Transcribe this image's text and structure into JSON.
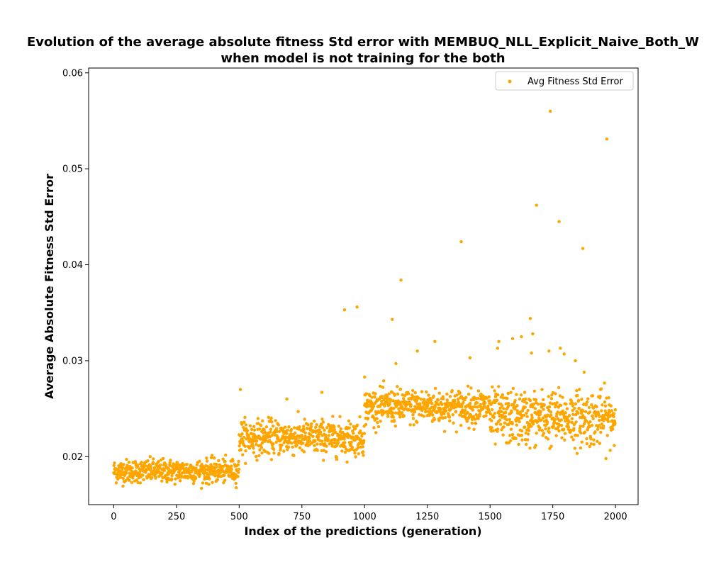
{
  "chart_data": {
    "type": "scatter",
    "title_line1": "Evolution of the average absolute fitness Std error with MEMBUQ_NLL_Explicit_Naive_Both_W",
    "title_line2": "when model is not training for the both",
    "xlabel": "Index of the predictions (generation)",
    "ylabel": "Average Absolute Fitness Std Error",
    "xlim": [
      -100,
      2090
    ],
    "ylim": [
      0.015,
      0.0605
    ],
    "x_ticks": [
      0,
      250,
      500,
      750,
      1000,
      1250,
      1500,
      1750,
      2000
    ],
    "y_ticks": [
      0.02,
      0.03,
      0.04,
      0.05,
      0.06
    ],
    "x_tick_labels": [
      "0",
      "250",
      "500",
      "750",
      "1000",
      "1250",
      "1500",
      "1750",
      "2000"
    ],
    "y_tick_labels": [
      "0.02",
      "0.03",
      "0.04",
      "0.05",
      "0.06"
    ],
    "grid": false,
    "legend_position": "top-right",
    "color": "#ffa500",
    "series": [
      {
        "name": "Avg Fitness Std Error",
        "segments": [
          {
            "x_range": [
              0,
              499
            ],
            "mean": 0.0185,
            "spread": 0.0006
          },
          {
            "x_range": [
              500,
              999
            ],
            "mean": 0.022,
            "spread": 0.0009
          },
          {
            "x_range": [
              1000,
              1499
            ],
            "mean": 0.0252,
            "spread": 0.0009
          },
          {
            "x_range": [
              1500,
              1999
            ],
            "mean": 0.024,
            "spread": 0.0014
          }
        ],
        "outliers": [
          {
            "x": 505,
            "y": 0.027
          },
          {
            "x": 690,
            "y": 0.026
          },
          {
            "x": 830,
            "y": 0.0267
          },
          {
            "x": 920,
            "y": 0.0353
          },
          {
            "x": 970,
            "y": 0.0356
          },
          {
            "x": 1000,
            "y": 0.0283
          },
          {
            "x": 1110,
            "y": 0.0343
          },
          {
            "x": 1125,
            "y": 0.0297
          },
          {
            "x": 1145,
            "y": 0.0384
          },
          {
            "x": 1210,
            "y": 0.031
          },
          {
            "x": 1280,
            "y": 0.032
          },
          {
            "x": 1385,
            "y": 0.0424
          },
          {
            "x": 1420,
            "y": 0.0303
          },
          {
            "x": 1530,
            "y": 0.0313
          },
          {
            "x": 1535,
            "y": 0.032
          },
          {
            "x": 1590,
            "y": 0.0323
          },
          {
            "x": 1625,
            "y": 0.0325
          },
          {
            "x": 1660,
            "y": 0.0344
          },
          {
            "x": 1670,
            "y": 0.0328
          },
          {
            "x": 1665,
            "y": 0.0308
          },
          {
            "x": 1685,
            "y": 0.0462
          },
          {
            "x": 1740,
            "y": 0.056
          },
          {
            "x": 1735,
            "y": 0.031
          },
          {
            "x": 1775,
            "y": 0.0445
          },
          {
            "x": 1780,
            "y": 0.0313
          },
          {
            "x": 1795,
            "y": 0.0307
          },
          {
            "x": 1840,
            "y": 0.03
          },
          {
            "x": 1870,
            "y": 0.0417
          },
          {
            "x": 1875,
            "y": 0.0288
          },
          {
            "x": 1965,
            "y": 0.0531
          }
        ]
      }
    ]
  }
}
